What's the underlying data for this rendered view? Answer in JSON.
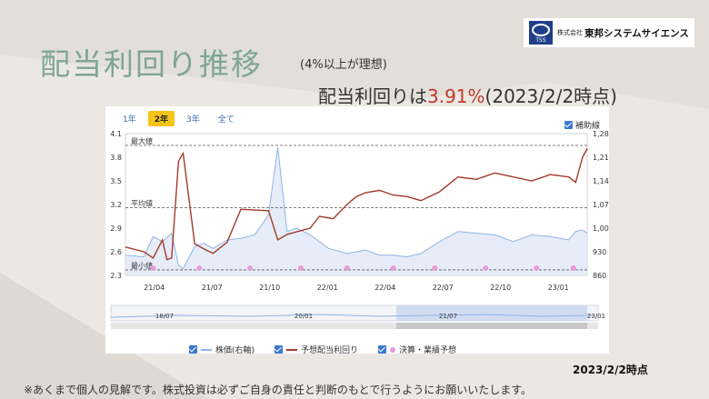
{
  "logo": {
    "company_prefix": "株式会社",
    "company_name": "東邦システムサイエンス",
    "mark_label": "TSS"
  },
  "title": "配当利回り推移",
  "title_note": "(4%以上が理想)",
  "yield_prefix": "配当利回りは",
  "yield_value": "3.91%",
  "yield_suffix": "(2023/2/2時点)",
  "tabs": [
    {
      "label": "1年"
    },
    {
      "label": "2年",
      "active": true
    },
    {
      "label": "3年"
    },
    {
      "label": "全て"
    }
  ],
  "aux_label": "補助線",
  "asof": "2023/2/2時点",
  "disclaimer": "※あくまで個人の見解です。株式投資は必ずご自身の責任と判断のもとで行うようにお願いいたします。",
  "colors": {
    "yield_line": "#a33a2a",
    "price_line": "#8fb4e3",
    "price_fill": "#dbe6f6",
    "event_dot": "#e89ad8",
    "accent": "#c0392b",
    "title": "#7fa596"
  },
  "chart_data": {
    "type": "line",
    "x_ticks": [
      "21/04",
      "21/07",
      "21/10",
      "22/01",
      "22/04",
      "22/07",
      "22/10",
      "23/01"
    ],
    "y_left": {
      "range": [
        2.3,
        4.1
      ],
      "ticks": [
        "2.3",
        "2.6",
        "2.9",
        "3.2",
        "3.5",
        "3.8",
        "4.1"
      ]
    },
    "y_right": {
      "range": [
        860,
        1280
      ],
      "ticks": [
        "860",
        "930",
        "1,000",
        "1,070",
        "1,140",
        "1,210",
        "1,280"
      ]
    },
    "ref_lines": [
      {
        "label": "最大値",
        "value": 3.95
      },
      {
        "label": "平均値",
        "value": 3.16
      },
      {
        "label": "最小値",
        "value": 2.37
      }
    ],
    "navigator_ticks": [
      "18/07",
      "20/01",
      "21/07",
      "23/01"
    ],
    "series": [
      {
        "name": "予想配当利回り",
        "axis": "left",
        "t": [
          0,
          0.04,
          0.06,
          0.08,
          0.09,
          0.1,
          0.115,
          0.125,
          0.15,
          0.175,
          0.19,
          0.22,
          0.25,
          0.28,
          0.31,
          0.33,
          0.35,
          0.4,
          0.42,
          0.45,
          0.48,
          0.5,
          0.52,
          0.55,
          0.58,
          0.61,
          0.64,
          0.68,
          0.72,
          0.76,
          0.8,
          0.84,
          0.88,
          0.92,
          0.96,
          0.975,
          0.99,
          1
        ],
        "values": [
          2.66,
          2.6,
          2.52,
          2.75,
          2.5,
          2.52,
          3.75,
          3.85,
          2.7,
          2.62,
          2.58,
          2.72,
          3.14,
          3.13,
          3.12,
          2.75,
          2.82,
          2.9,
          3.05,
          3.02,
          3.2,
          3.3,
          3.35,
          3.38,
          3.32,
          3.3,
          3.25,
          3.36,
          3.55,
          3.52,
          3.6,
          3.55,
          3.5,
          3.58,
          3.55,
          3.48,
          3.8,
          3.91
        ]
      },
      {
        "name": "株価(右軸)",
        "axis": "right",
        "t": [
          0,
          0.04,
          0.06,
          0.08,
          0.1,
          0.115,
          0.125,
          0.15,
          0.17,
          0.19,
          0.22,
          0.25,
          0.28,
          0.31,
          0.33,
          0.35,
          0.37,
          0.4,
          0.44,
          0.48,
          0.52,
          0.55,
          0.58,
          0.61,
          0.64,
          0.68,
          0.72,
          0.76,
          0.8,
          0.84,
          0.88,
          0.92,
          0.96,
          0.975,
          0.99,
          1
        ],
        "values": [
          920,
          915,
          975,
          960,
          985,
          890,
          880,
          945,
          955,
          940,
          965,
          970,
          980,
          1040,
          1240,
          990,
          1000,
          980,
          940,
          925,
          935,
          920,
          920,
          915,
          925,
          960,
          990,
          985,
          980,
          960,
          980,
          975,
          965,
          990,
          995,
          985
        ]
      },
      {
        "name": "決算・業績予想",
        "type": "markers",
        "t": [
          0.06,
          0.16,
          0.27,
          0.38,
          0.48,
          0.58,
          0.67,
          0.78,
          0.89,
          0.97
        ]
      }
    ],
    "legend": [
      "株価(右軸)",
      "予想配当利回り",
      "決算・業績予想"
    ]
  }
}
